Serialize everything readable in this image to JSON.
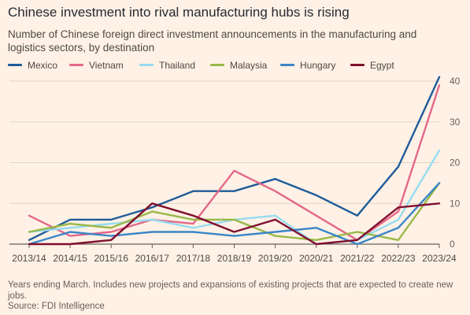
{
  "chart_data": {
    "type": "line",
    "title": "Chinese investment into rival manufacturing hubs is rising",
    "subtitle": "Number of Chinese foreign direct investment announcements in the manufacturing and logistics sectors, by destination",
    "categories": [
      "2013/14",
      "2014/15",
      "2015/16",
      "2016/17",
      "2017/18",
      "2018/19",
      "2019/20",
      "2020/21",
      "2021/22",
      "2022/23",
      "2023/24"
    ],
    "ylim": [
      0,
      40
    ],
    "yticks": [
      0,
      10,
      20,
      30,
      40
    ],
    "grid": true,
    "legend_position": "top",
    "series": [
      {
        "name": "Mexico",
        "color": "#1f5c99",
        "values": [
          1,
          6,
          6,
          9,
          13,
          13,
          16,
          12,
          7,
          19,
          41
        ]
      },
      {
        "name": "Vietnam",
        "color": "#e3688a",
        "values": [
          7,
          2,
          3,
          6,
          5,
          18,
          13,
          7,
          1,
          8,
          39
        ]
      },
      {
        "name": "Thailand",
        "color": "#96dcf0",
        "values": [
          3,
          4,
          5,
          6,
          4,
          6,
          7,
          0,
          1,
          6,
          23
        ]
      },
      {
        "name": "Malaysia",
        "color": "#99b849",
        "values": [
          3,
          5,
          4,
          8,
          6,
          6,
          2,
          1,
          3,
          1,
          15
        ]
      },
      {
        "name": "Hungary",
        "color": "#3a86c7",
        "values": [
          0,
          3,
          2,
          3,
          3,
          2,
          3,
          4,
          0,
          4,
          15
        ]
      },
      {
        "name": "Egypt",
        "color": "#800f2f",
        "values": [
          0,
          0,
          1,
          10,
          7,
          3,
          6,
          0,
          1,
          9,
          10
        ]
      }
    ]
  },
  "footnote": "Years ending March. Includes new projects and expansions of existing projects that are expected to create new jobs.",
  "source": "Source: FDI Intelligence"
}
